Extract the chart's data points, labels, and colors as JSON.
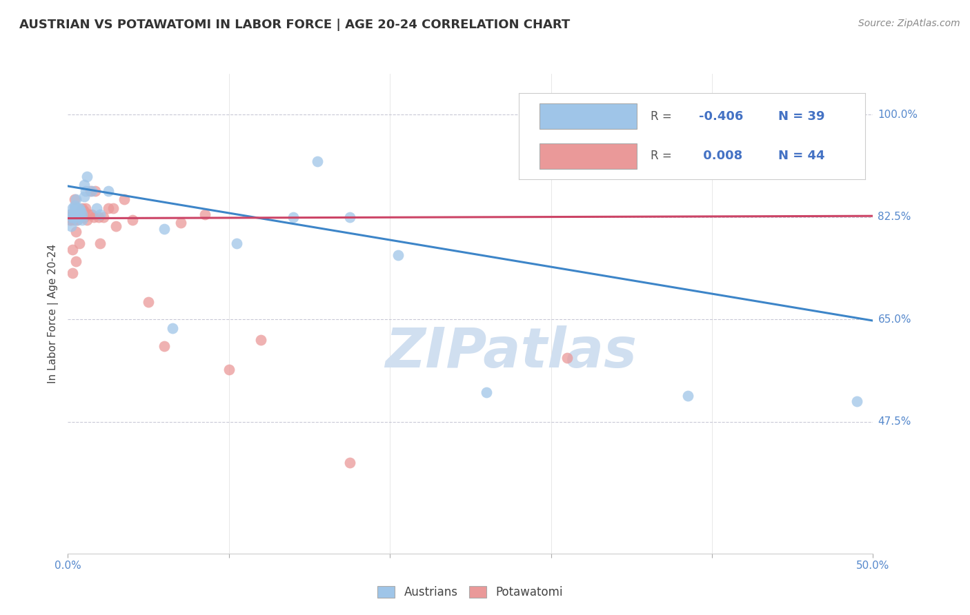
{
  "title": "AUSTRIAN VS POTAWATOMI IN LABOR FORCE | AGE 20-24 CORRELATION CHART",
  "source": "Source: ZipAtlas.com",
  "ylabel": "In Labor Force | Age 20-24",
  "ytick_labels": [
    "100.0%",
    "82.5%",
    "65.0%",
    "47.5%"
  ],
  "ytick_values": [
    1.0,
    0.825,
    0.65,
    0.475
  ],
  "xlim": [
    0.0,
    0.5
  ],
  "ylim": [
    0.25,
    1.07
  ],
  "legend_blue_R": "-0.406",
  "legend_blue_N": "39",
  "legend_pink_R": " 0.008",
  "legend_pink_N": "44",
  "blue_color": "#9fc5e8",
  "pink_color": "#ea9999",
  "blue_line_color": "#3d85c8",
  "pink_line_color": "#cc4466",
  "grid_color": "#bbbbcc",
  "watermark_color": "#d0dff0",
  "blue_trend_x": [
    0.0,
    0.5
  ],
  "blue_trend_y": [
    0.878,
    0.648
  ],
  "pink_trend_y": [
    0.823,
    0.827
  ],
  "austrians_x": [
    0.001,
    0.002,
    0.002,
    0.003,
    0.003,
    0.004,
    0.004,
    0.004,
    0.005,
    0.005,
    0.005,
    0.005,
    0.006,
    0.006,
    0.006,
    0.007,
    0.007,
    0.008,
    0.008,
    0.009,
    0.009,
    0.01,
    0.01,
    0.011,
    0.012,
    0.015,
    0.018,
    0.02,
    0.025,
    0.06,
    0.065,
    0.105,
    0.14,
    0.155,
    0.175,
    0.205,
    0.26,
    0.385,
    0.49
  ],
  "austrians_y": [
    0.83,
    0.81,
    0.825,
    0.825,
    0.84,
    0.825,
    0.84,
    0.845,
    0.83,
    0.825,
    0.84,
    0.855,
    0.82,
    0.835,
    0.84,
    0.835,
    0.84,
    0.825,
    0.835,
    0.82,
    0.83,
    0.86,
    0.88,
    0.87,
    0.895,
    0.87,
    0.84,
    0.83,
    0.87,
    0.805,
    0.635,
    0.78,
    0.825,
    0.92,
    0.825,
    0.76,
    0.525,
    0.52,
    0.51
  ],
  "potawatomi_x": [
    0.001,
    0.001,
    0.002,
    0.002,
    0.003,
    0.003,
    0.004,
    0.004,
    0.005,
    0.005,
    0.005,
    0.006,
    0.006,
    0.007,
    0.007,
    0.008,
    0.008,
    0.009,
    0.01,
    0.01,
    0.011,
    0.012,
    0.013,
    0.014,
    0.015,
    0.016,
    0.017,
    0.019,
    0.02,
    0.022,
    0.025,
    0.028,
    0.03,
    0.035,
    0.04,
    0.05,
    0.06,
    0.07,
    0.085,
    0.1,
    0.12,
    0.175,
    0.31,
    0.49
  ],
  "potawatomi_y": [
    0.825,
    0.82,
    0.83,
    0.82,
    0.77,
    0.73,
    0.855,
    0.82,
    0.83,
    0.8,
    0.75,
    0.825,
    0.82,
    0.825,
    0.78,
    0.835,
    0.825,
    0.84,
    0.835,
    0.825,
    0.84,
    0.82,
    0.83,
    0.87,
    0.83,
    0.825,
    0.87,
    0.825,
    0.78,
    0.825,
    0.84,
    0.84,
    0.81,
    0.855,
    0.82,
    0.68,
    0.605,
    0.815,
    0.83,
    0.565,
    0.615,
    0.405,
    0.585,
    1.0
  ],
  "title_fontsize": 13,
  "source_fontsize": 10,
  "tick_fontsize": 11,
  "ylabel_fontsize": 11,
  "legend_fontsize": 13,
  "scatter_size": 130,
  "scatter_alpha": 0.75
}
